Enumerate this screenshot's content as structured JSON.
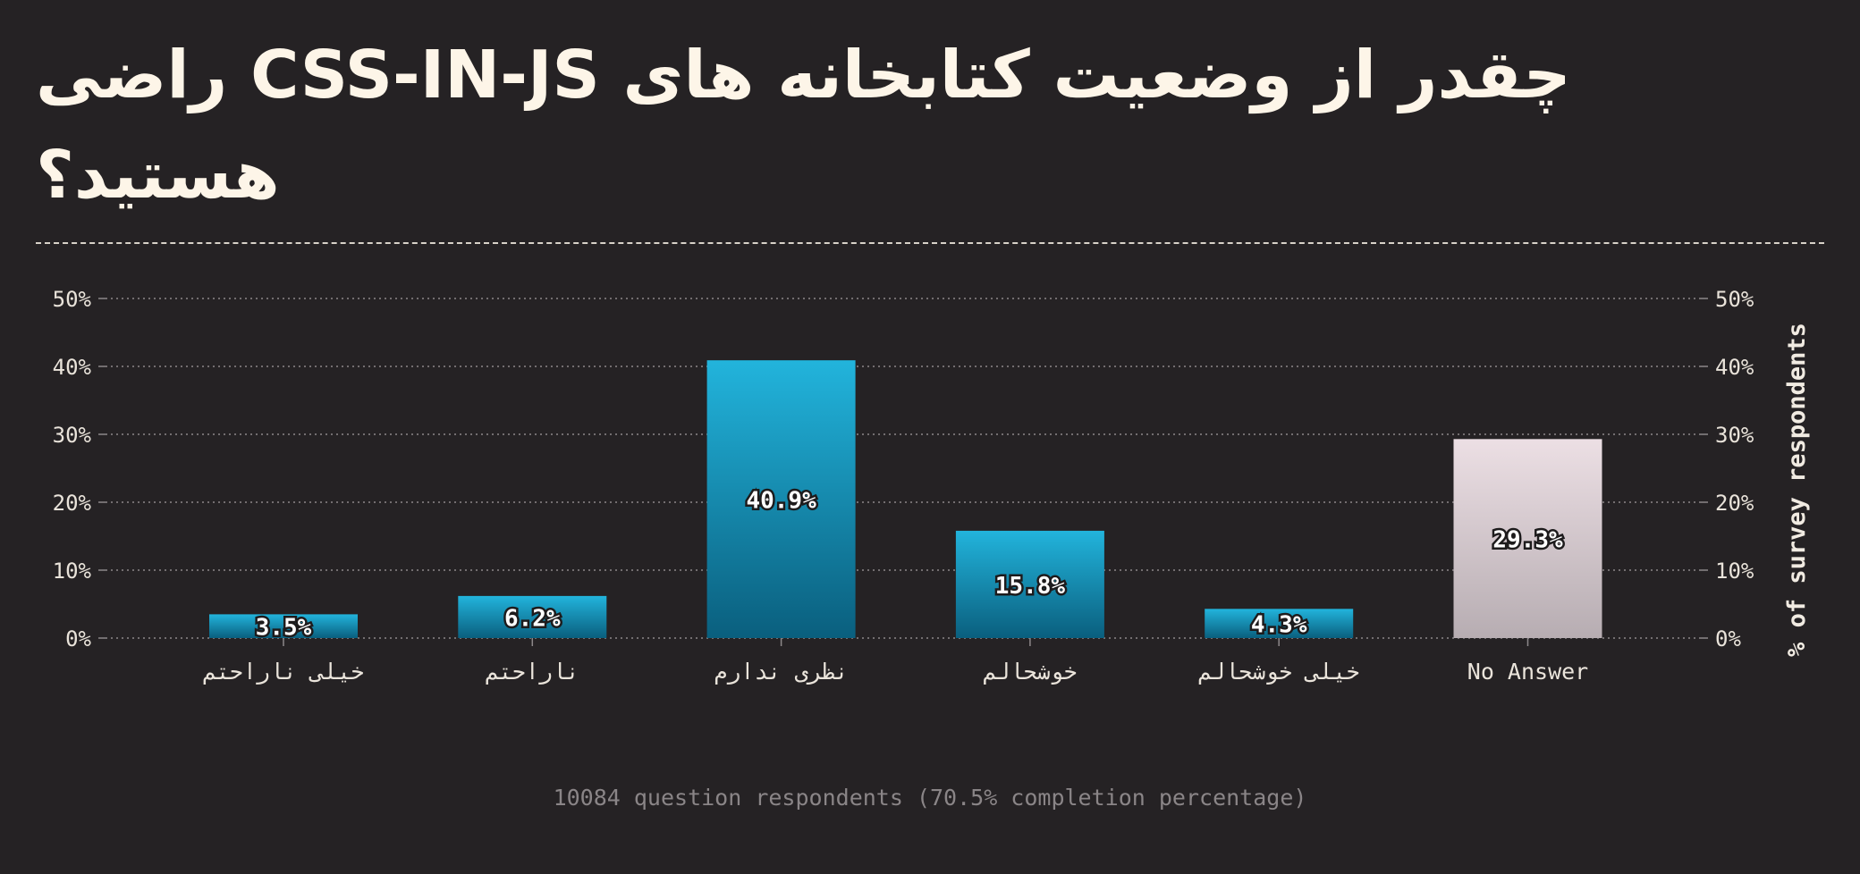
{
  "chart_data": {
    "type": "bar",
    "title": "چقدر از وضعیت کتابخانه های CSS-IN-JS راضی هستید؟",
    "categories": [
      "خیلی ناراحتم",
      "ناراحتم",
      "نظری ندارم",
      "خوشحالم",
      "خیلی خوشحالم",
      "No Answer"
    ],
    "values": [
      3.5,
      6.2,
      40.9,
      15.8,
      4.3,
      29.3
    ],
    "data_labels": [
      "3.5%",
      "6.2%",
      "40.9%",
      "15.8%",
      "4.3%",
      "29.3%"
    ],
    "ylim": [
      0,
      50
    ],
    "yticks": [
      0,
      10,
      20,
      30,
      40,
      50
    ],
    "ytick_labels": [
      "0%",
      "10%",
      "20%",
      "30%",
      "40%",
      "50%"
    ],
    "ylabel_right": "% of survey respondents",
    "grid": true,
    "colors": {
      "bar_top": "#22b4dc",
      "bar_bottom": "#0a5f7e",
      "no_answer_top": "#ecdfe4",
      "no_answer_bottom": "#b7adb2"
    }
  },
  "footer": "10084 question respondents (70.5% completion percentage)"
}
